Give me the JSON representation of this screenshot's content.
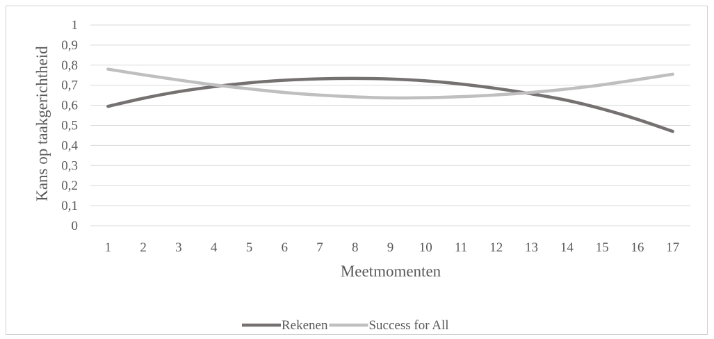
{
  "chart_data": {
    "type": "line",
    "title": "",
    "xlabel": "Meetmomenten",
    "ylabel": "Kans op taakgerichtheid",
    "categories": [
      "1",
      "2",
      "3",
      "4",
      "5",
      "6",
      "7",
      "8",
      "9",
      "10",
      "11",
      "12",
      "13",
      "14",
      "15",
      "16",
      "17"
    ],
    "yticks": [
      "0",
      "0,1",
      "0,2",
      "0,3",
      "0,4",
      "0,5",
      "0,6",
      "0,7",
      "0,8",
      "0,9",
      "1"
    ],
    "ylim": [
      0,
      1
    ],
    "grid": true,
    "legend": "bottom",
    "series": [
      {
        "name": "Rekenen",
        "color": "#767171",
        "values": [
          0.595,
          0.635,
          0.668,
          0.693,
          0.712,
          0.725,
          0.732,
          0.734,
          0.731,
          0.722,
          0.706,
          0.684,
          0.657,
          0.625,
          0.582,
          0.53,
          0.47
        ]
      },
      {
        "name": "Success for All",
        "color": "#bfbfbf",
        "values": [
          0.78,
          0.752,
          0.726,
          0.702,
          0.682,
          0.664,
          0.651,
          0.642,
          0.637,
          0.638,
          0.643,
          0.652,
          0.664,
          0.681,
          0.702,
          0.728,
          0.755
        ]
      }
    ]
  }
}
